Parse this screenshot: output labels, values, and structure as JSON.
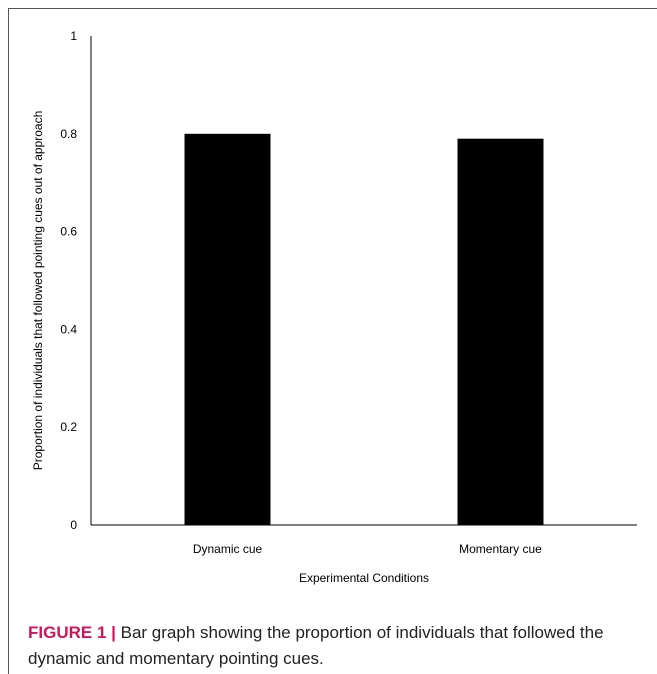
{
  "chart_data": {
    "type": "bar",
    "categories": [
      "Dynamic cue",
      "Momentary cue"
    ],
    "values": [
      0.8,
      0.79
    ],
    "ylabel": "Proportion of individuals that followed pointing cues out of approach",
    "xlabel": "Experimental Conditions",
    "ylim": [
      0,
      1
    ],
    "yticks": [
      0,
      0.2,
      0.4,
      0.6,
      0.8,
      1
    ],
    "ytick_labels": [
      "0",
      "0.2",
      "0.4",
      "0.6",
      "0.8",
      "1"
    ],
    "grid": false,
    "bar_color": "#000000"
  },
  "caption": {
    "label": "FIGURE 1 |",
    "text": " Bar graph showing the proportion of individuals that followed the dynamic and momentary pointing cues."
  },
  "colors": {
    "caption_label": "#d4145a",
    "frame": "#555555"
  }
}
